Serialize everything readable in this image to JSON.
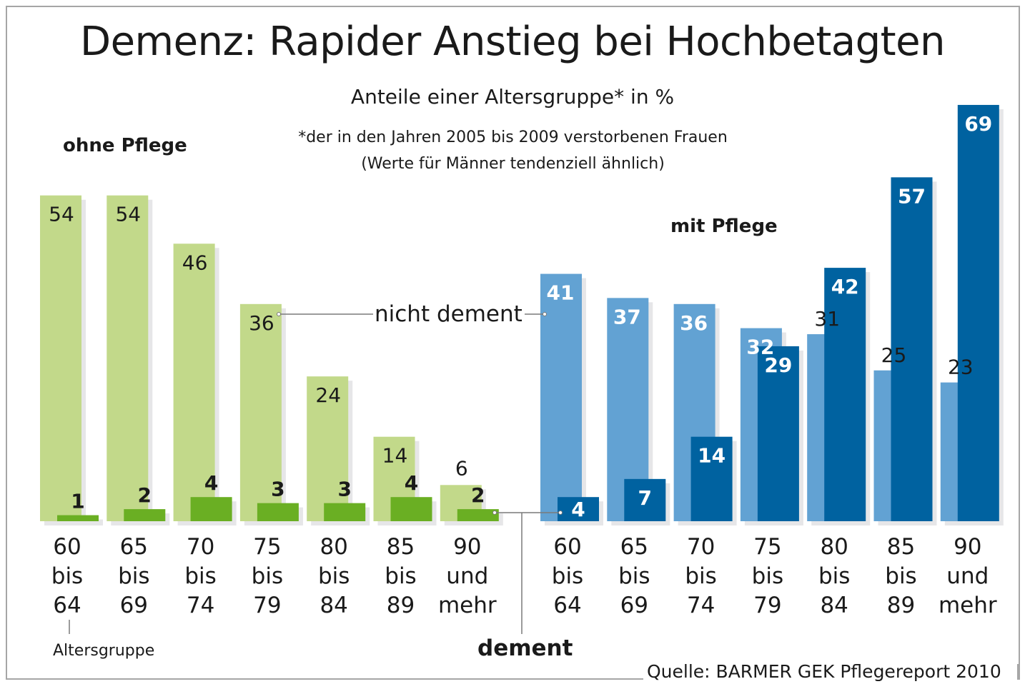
{
  "chart_data": {
    "type": "bar",
    "title": "Demenz: Rapider Anstieg bei Hochbetagten",
    "subtitle": "Anteile einer Altersgruppe* in %",
    "footnote": [
      "*der in den Jahren 2005 bis 2009 verstorbenen Frauen",
      "(Werte für Männer tendenziell ähnlich)"
    ],
    "xlabel": "Altersgruppe",
    "ylabel": "",
    "ylim": [
      0,
      69
    ],
    "grid": false,
    "categories": [
      "60 bis 64",
      "65 bis 69",
      "70 bis 74",
      "75 bis 79",
      "80 bis 84",
      "85 bis 89",
      "90 und mehr"
    ],
    "category_lines": [
      [
        "60",
        "bis",
        "64"
      ],
      [
        "65",
        "bis",
        "69"
      ],
      [
        "70",
        "bis",
        "74"
      ],
      [
        "75",
        "bis",
        "79"
      ],
      [
        "80",
        "bis",
        "84"
      ],
      [
        "85",
        "bis",
        "89"
      ],
      [
        "90",
        "und",
        "mehr"
      ]
    ],
    "groups": [
      {
        "name": "ohne Pflege",
        "series": [
          {
            "name": "nicht dement",
            "color": "#c2d98a",
            "values": [
              54,
              54,
              46,
              36,
              24,
              14,
              6
            ]
          },
          {
            "name": "dement",
            "color": "#6aaf23",
            "values": [
              1,
              2,
              4,
              3,
              3,
              4,
              2
            ]
          }
        ]
      },
      {
        "name": "mit Pflege",
        "series": [
          {
            "name": "nicht dement",
            "color": "#62a2d3",
            "values": [
              41,
              37,
              36,
              32,
              31,
              25,
              23
            ]
          },
          {
            "name": "dement",
            "color": "#0062a0",
            "values": [
              4,
              7,
              14,
              29,
              42,
              57,
              69
            ]
          }
        ]
      }
    ],
    "annotations": [
      "nicht dement",
      "dement"
    ],
    "source": "Quelle: BARMER GEK Pflegereport 2010"
  },
  "labels": {
    "title": "Demenz: Rapider Anstieg bei Hochbetagten",
    "subtitle": "Anteile einer Altersgruppe* in %",
    "footnote1": "*der in den Jahren 2005 bis 2009 verstorbenen Frauen",
    "footnote2": "(Werte für Männer tendenziell ähnlich)",
    "ohne": "ohne Pflege",
    "mit": "mit Pflege",
    "nicht_dement": "nicht dement",
    "dement": "dement",
    "altersgruppe": "Altersgruppe",
    "source": "Quelle: BARMER GEK Pflegereport 2010"
  }
}
